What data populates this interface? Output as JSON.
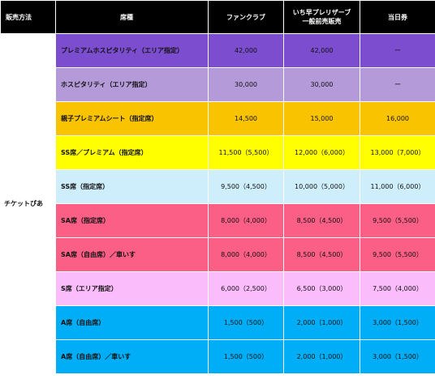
{
  "header": {
    "method": "販売方法",
    "seat": "席種",
    "fanclub": "ファンクラブ",
    "presale_line1": "いち早プレリザーブ",
    "presale_line2": "一般前売販売",
    "sameday": "当日券"
  },
  "method_label": "チケットぴあ",
  "rows": [
    {
      "seat": "プレミアムホスピタリティ（エリア指定）",
      "fanclub": "42,000",
      "presale": "42,000",
      "sameday": "ー",
      "color": "#7c4dce"
    },
    {
      "seat": "ホスピタリティ（エリア指定）",
      "fanclub": "30,000",
      "presale": "30,000",
      "sameday": "ー",
      "color": "#b59ad9"
    },
    {
      "seat": "親子プレミアムシート（指定席）",
      "fanclub": "14,500",
      "presale": "15,000",
      "sameday": "16,000",
      "color": "#f9c300"
    },
    {
      "seat": "SS席／プレミアム（指定席）",
      "fanclub": "11,500（5,500）",
      "presale": "12,000（6,000）",
      "sameday": "13,000（7,000）",
      "color": "#ffff00"
    },
    {
      "seat": "SS席（指定席）",
      "fanclub": "9,500（4,500）",
      "presale": "10,000（5,000）",
      "sameday": "11,000（6,000）",
      "color": "#cfeefb"
    },
    {
      "seat": "SA席（指定席）",
      "fanclub": "8,000（4,000）",
      "presale": "8,500（4,500）",
      "sameday": "9,500（5,500）",
      "color": "#fb5f85"
    },
    {
      "seat": "SA席（自由席）／車いす",
      "fanclub": "8,000（4,000）",
      "presale": "8,500（4,500）",
      "sameday": "9,500（5,500）",
      "color": "#fb5f85"
    },
    {
      "seat": "S席（エリア指定）",
      "fanclub": "6,000（2,500）",
      "presale": "6,500（3,000）",
      "sameday": "7,500（4,000）",
      "color": "#fbbcfb"
    },
    {
      "seat": "A席（自由席）",
      "fanclub": "1,500（500）",
      "presale": "2,000（1,000）",
      "sameday": "3,000（1,500）",
      "color": "#00aef7"
    },
    {
      "seat": "A席（自由席）／車いす",
      "fanclub": "1,500（500）",
      "presale": "2,000（1,000）",
      "sameday": "3,000（1,500）",
      "color": "#00aef7"
    }
  ]
}
